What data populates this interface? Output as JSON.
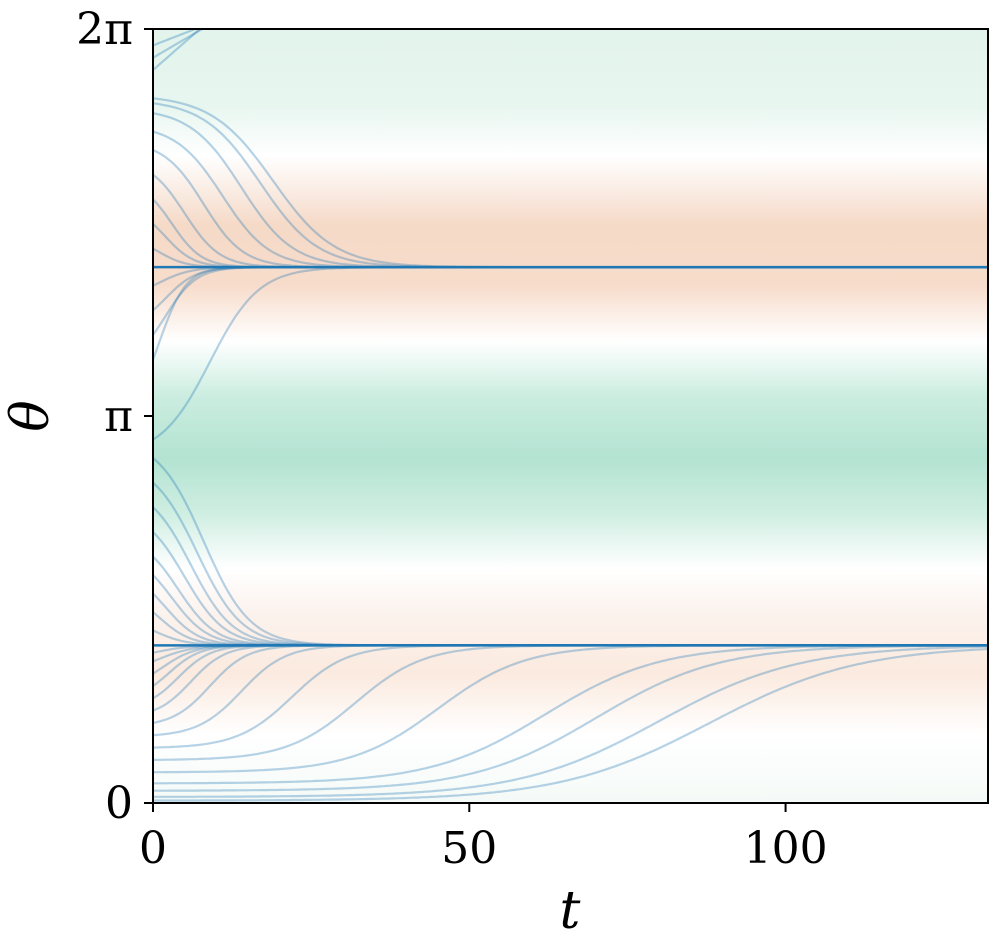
{
  "chart_data": {
    "type": "line",
    "title": "",
    "xlabel": "t",
    "ylabel": "θ",
    "xlim": [
      0,
      132
    ],
    "ylim": [
      0,
      6.2832
    ],
    "x_ticks": [
      {
        "value": 0,
        "label": "0"
      },
      {
        "value": 50,
        "label": "50"
      },
      {
        "value": 100,
        "label": "100"
      }
    ],
    "y_ticks": [
      {
        "value": 0,
        "label": "0"
      },
      {
        "value": 3.1416,
        "label": "π"
      },
      {
        "value": 6.2832,
        "label": "2π"
      }
    ],
    "grid": false,
    "legend": "none",
    "background_field": {
      "description": "horizontal bands colored by θ (diverging green–white–orange)",
      "stops": [
        {
          "theta": 0.0,
          "color": "#f4faf7"
        },
        {
          "theta": 0.55,
          "color": "#ffffff"
        },
        {
          "theta": 1.05,
          "color": "#fbeadf"
        },
        {
          "theta": 1.55,
          "color": "#fcf3ee"
        },
        {
          "theta": 1.9,
          "color": "#ffffff"
        },
        {
          "theta": 2.35,
          "color": "#cfeee2"
        },
        {
          "theta": 2.8,
          "color": "#b3e3d2"
        },
        {
          "theta": 3.3,
          "color": "#cbede0"
        },
        {
          "theta": 3.75,
          "color": "#ffffff"
        },
        {
          "theta": 4.2,
          "color": "#f7dccb"
        },
        {
          "theta": 4.7,
          "color": "#f5dac8"
        },
        {
          "theta": 5.25,
          "color": "#ffffff"
        },
        {
          "theta": 5.65,
          "color": "#e8f6f0"
        },
        {
          "theta": 6.2832,
          "color": "#e2f4ec"
        }
      ]
    },
    "attractors": [
      1.28,
      4.35
    ],
    "trajectories": [
      {
        "theta0": 0.02,
        "tau": 1.3,
        "t_mid": 88
      },
      {
        "theta0": 0.05,
        "tau": 1.5,
        "t_mid": 80
      },
      {
        "theta0": 0.1,
        "tau": 1.4,
        "t_mid": 70
      },
      {
        "theta0": 0.16,
        "tau": 1.6,
        "t_mid": 62
      },
      {
        "theta0": 0.25,
        "tau": 1.5,
        "t_mid": 45
      },
      {
        "theta0": 0.35,
        "tau": 1.6,
        "t_mid": 32
      },
      {
        "theta0": 0.45,
        "tau": 1.7,
        "t_mid": 22
      },
      {
        "theta0": 0.55,
        "tau": 1.8,
        "t_mid": 14
      },
      {
        "theta0": 0.65,
        "tau": 1.9,
        "t_mid": 9
      },
      {
        "theta0": 0.75,
        "tau": 2.0,
        "t_mid": 6
      },
      {
        "theta0": 0.85,
        "tau": 2.1,
        "t_mid": 4
      },
      {
        "theta0": 0.95,
        "tau": 2.2,
        "t_mid": 2.5
      },
      {
        "theta0": 1.05,
        "tau": 2.4,
        "t_mid": 1.5
      },
      {
        "theta0": 1.15,
        "tau": 2.6,
        "t_mid": 1
      },
      {
        "theta0": 1.22,
        "tau": 2.6,
        "t_mid": 0.5
      },
      {
        "theta0": 1.4,
        "tau": 2.4,
        "t_mid": 0.5
      },
      {
        "theta0": 1.55,
        "tau": 2.4,
        "t_mid": 1
      },
      {
        "theta0": 1.7,
        "tau": 2.4,
        "t_mid": 2
      },
      {
        "theta0": 1.85,
        "tau": 2.5,
        "t_mid": 3
      },
      {
        "theta0": 2.0,
        "tau": 2.5,
        "t_mid": 4
      },
      {
        "theta0": 2.2,
        "tau": 2.6,
        "t_mid": 5
      },
      {
        "theta0": 2.4,
        "tau": 2.6,
        "t_mid": 6
      },
      {
        "theta0": 2.6,
        "tau": 2.7,
        "t_mid": 7
      },
      {
        "theta0": 2.8,
        "tau": 2.7,
        "t_mid": 8
      },
      {
        "theta0": 2.95,
        "tau": 2.8,
        "t_mid": 9
      },
      {
        "theta0": 3.6,
        "tau": 2.0,
        "t_mid": 1
      },
      {
        "theta0": 3.8,
        "tau": 2.2,
        "t_mid": 2
      },
      {
        "theta0": 4.0,
        "tau": 2.2,
        "t_mid": 2
      },
      {
        "theta0": 4.2,
        "tau": 2.4,
        "t_mid": 1
      },
      {
        "theta0": 4.5,
        "tau": 2.0,
        "t_mid": 1
      },
      {
        "theta0": 4.7,
        "tau": 2.0,
        "t_mid": 2
      },
      {
        "theta0": 4.9,
        "tau": 2.0,
        "t_mid": 3
      },
      {
        "theta0": 5.1,
        "tau": 2.2,
        "t_mid": 5
      },
      {
        "theta0": 5.3,
        "tau": 2.2,
        "t_mid": 8
      },
      {
        "theta0": 5.45,
        "tau": 2.4,
        "t_mid": 11
      },
      {
        "theta0": 5.6,
        "tau": 2.4,
        "t_mid": 14
      },
      {
        "theta0": 5.68,
        "tau": 2.5,
        "t_mid": 17
      },
      {
        "theta0": 5.72,
        "tau": 2.6,
        "t_mid": 19
      }
    ],
    "wrap_curves": [
      {
        "theta0": 5.95,
        "slope": 0.045,
        "t_end": 22
      },
      {
        "theta0": 6.05,
        "slope": 0.03,
        "t_end": 22
      },
      {
        "theta0": 6.15,
        "slope": 0.02,
        "t_end": 22
      }
    ],
    "colors": {
      "trajectory": "#1f77b4",
      "attractor_line": "#1f77b4",
      "axes": "#000000"
    }
  }
}
